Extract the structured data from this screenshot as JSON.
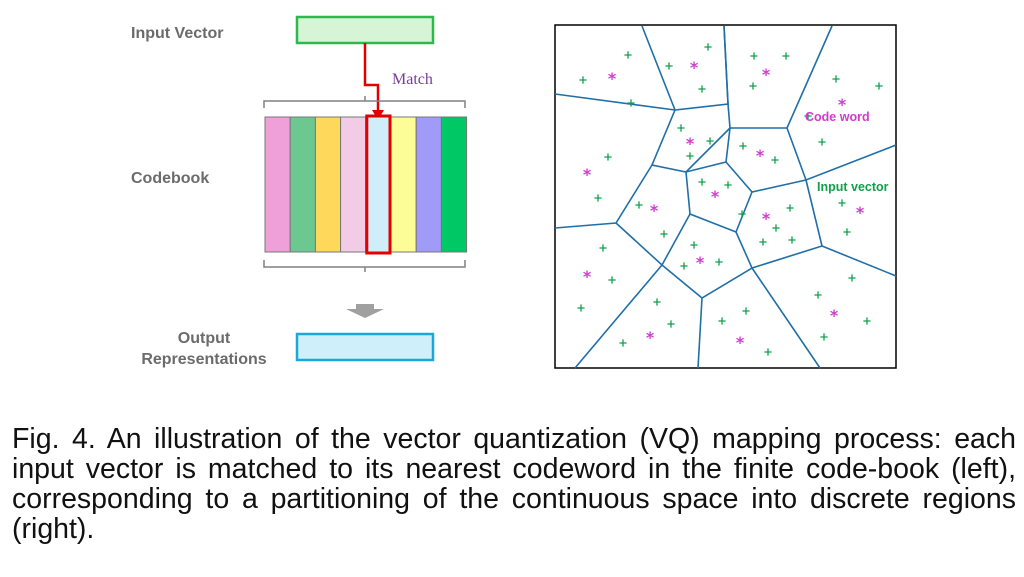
{
  "left_panel": {
    "input_vector_label": "Input Vector",
    "match_label": "Match",
    "codebook_label": "Codebook",
    "output_label_line1": "Output",
    "output_label_line2": "Representations",
    "codebook_colors": [
      "#f0a0d8",
      "#6cc890",
      "#fdd85a",
      "#f2cce6",
      "#cfeefa",
      "#fdfd98",
      "#a09af8",
      "#00c864"
    ],
    "matched_index": 4,
    "input_box_color": "#d6f5d6",
    "input_box_border": "#2db84d",
    "output_box_color": "#cff0fb",
    "output_box_border": "#1ba8d8",
    "match_color": "#e00000",
    "match_label_color": "#7a3a9a"
  },
  "right_panel": {
    "code_word_label": "Code word",
    "input_vector_label": "Input vector",
    "code_word_color": "#d03ccf",
    "input_vector_color": "#12a04a",
    "edge_color": "#1f6fa8",
    "code_word_symbol": "*",
    "input_vector_symbol": "+"
  },
  "caption": "Fig. 4. An illustration of the vector quantization (VQ) mapping process: each input vector is matched to its nearest codeword in the finite code-book (left), corresponding to a partitioning of the continuous space into discrete regions (right)."
}
